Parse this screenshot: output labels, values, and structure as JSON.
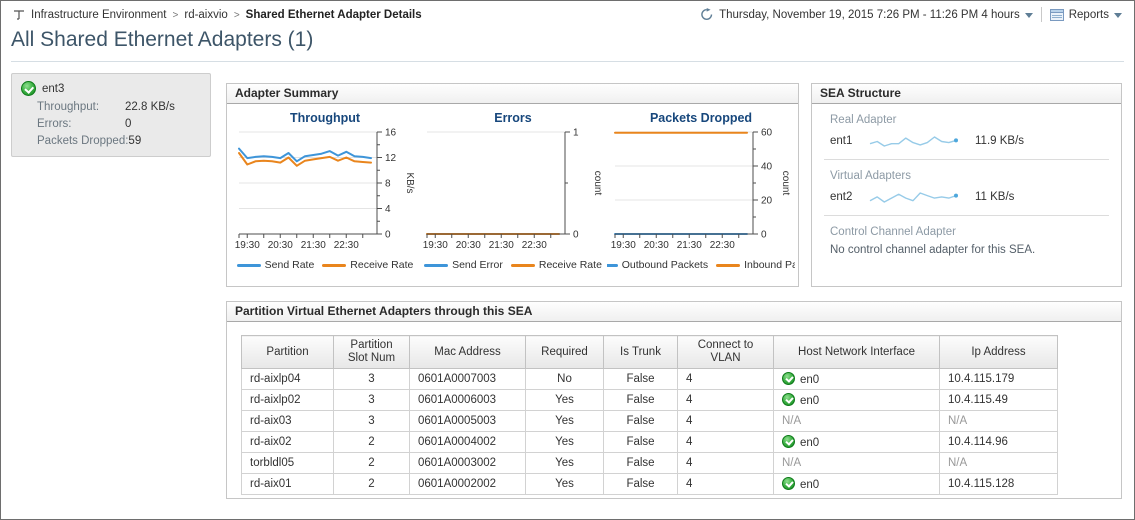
{
  "page": {
    "breadcrumb": {
      "items": [
        "Infrastructure Environment",
        "rd-aixvio",
        "Shared Ethernet Adapter Details"
      ],
      "separator": ">"
    },
    "time_range": "Thursday, November 19, 2015 7:26 PM - 11:26 PM 4 hours",
    "reports_label": "Reports",
    "title": "All Shared Ethernet Adapters (1)"
  },
  "icons": {
    "breadcrumb": "hierarchy-icon",
    "time_range": "time-range-clock-icon",
    "reports": "report-icon",
    "dropdown": "caret-down-icon",
    "status_ok": "green-check-icon"
  },
  "adapter_card": {
    "name": "ent3",
    "status": "ok",
    "rows": [
      {
        "label": "Throughput:",
        "value": "22.8 KB/s"
      },
      {
        "label": "Errors:",
        "value": "0"
      },
      {
        "label": "Packets Dropped:",
        "value": "59"
      }
    ]
  },
  "panels": {
    "adapter_summary": "Adapter Summary",
    "sea_structure": "SEA Structure",
    "partition_table": "Partition Virtual Ethernet Adapters through this SEA"
  },
  "sea_structure": {
    "sections": [
      {
        "label": "Real Adapter",
        "name": "ent1",
        "value": "11.9 KB/s",
        "sparkline": [
          4.0,
          4.2,
          3.8,
          4.0,
          4.0,
          4.5,
          4.1,
          3.9,
          4.1,
          4.6,
          4.2,
          4.1,
          4.3
        ]
      },
      {
        "label": "Virtual Adapters",
        "name": "ent2",
        "value": "11 KB/s",
        "sparkline": [
          3.8,
          4.1,
          3.7,
          4.0,
          4.3,
          4.0,
          3.8,
          4.4,
          4.2,
          4.0,
          4.1,
          4.0,
          4.2
        ]
      },
      {
        "label": "Control Channel Adapter",
        "text": "No control channel adapter for this SEA."
      }
    ]
  },
  "partition_panel": {
    "columns": [
      "Partition",
      "Partition Slot Num",
      "Mac Address",
      "Required",
      "Is Trunk",
      "Connect to VLAN",
      "Host Network Interface",
      "Ip Address"
    ],
    "rows": [
      {
        "partition": "rd-aixlp04",
        "slot": "3",
        "mac": "0601A0007003",
        "required": "No",
        "is_trunk": "False",
        "vlan": "4",
        "host_if": "en0",
        "host_if_status": "ok",
        "ip": "10.4.115.179"
      },
      {
        "partition": "rd-aixlp02",
        "slot": "3",
        "mac": "0601A0006003",
        "required": "Yes",
        "is_trunk": "False",
        "vlan": "4",
        "host_if": "en0",
        "host_if_status": "ok",
        "ip": "10.4.115.49"
      },
      {
        "partition": "rd-aix03",
        "slot": "3",
        "mac": "0601A0005003",
        "required": "Yes",
        "is_trunk": "False",
        "vlan": "4",
        "host_if": "N/A",
        "host_if_status": "none",
        "ip": "N/A"
      },
      {
        "partition": "rd-aix02",
        "slot": "2",
        "mac": "0601A0004002",
        "required": "Yes",
        "is_trunk": "False",
        "vlan": "4",
        "host_if": "en0",
        "host_if_status": "ok",
        "ip": "10.4.114.96"
      },
      {
        "partition": "torbldl05",
        "slot": "2",
        "mac": "0601A0003002",
        "required": "Yes",
        "is_trunk": "False",
        "vlan": "4",
        "host_if": "N/A",
        "host_if_status": "none",
        "ip": "N/A"
      },
      {
        "partition": "rd-aix01",
        "slot": "2",
        "mac": "0601A0002002",
        "required": "Yes",
        "is_trunk": "False",
        "vlan": "4",
        "host_if": "en0",
        "host_if_status": "ok",
        "ip": "10.4.115.128"
      }
    ]
  },
  "chart_data": [
    {
      "type": "line",
      "title": "Throughput",
      "xlabel": "",
      "ylabel": "KB/s",
      "ylim": [
        0,
        16
      ],
      "yticks": [
        0,
        4,
        8,
        12,
        16
      ],
      "x_ticklabels": [
        "19:30",
        "20:30",
        "21:30",
        "22:30"
      ],
      "x_tick_indices": [
        1,
        5,
        9,
        13
      ],
      "legend_position": "bottom",
      "grid": true,
      "series": [
        {
          "name": "Send Rate",
          "color": "#3e95d9",
          "values": [
            13.4,
            11.9,
            12.1,
            12.2,
            12.1,
            11.9,
            12.7,
            11.4,
            12.2,
            12.4,
            12.6,
            13.0,
            12.3,
            12.9,
            12.2,
            12.1,
            11.9
          ]
        },
        {
          "name": "Receive Rate",
          "color": "#e9851d",
          "values": [
            12.7,
            10.9,
            11.4,
            11.5,
            11.4,
            11.2,
            12.0,
            10.7,
            11.5,
            11.7,
            11.9,
            12.1,
            11.5,
            12.0,
            11.4,
            11.3,
            11.2
          ]
        }
      ]
    },
    {
      "type": "line",
      "title": "Errors",
      "xlabel": "",
      "ylabel": "count",
      "ylim": [
        0,
        1
      ],
      "yticks": [
        0,
        1
      ],
      "x_ticklabels": [
        "19:30",
        "20:30",
        "21:30",
        "22:30"
      ],
      "x_tick_indices": [
        1,
        5,
        9,
        13
      ],
      "legend_position": "bottom",
      "grid": true,
      "series": [
        {
          "name": "Send Error",
          "color": "#3e95d9",
          "values": [
            0,
            0,
            0,
            0,
            0,
            0,
            0,
            0,
            0,
            0,
            0,
            0,
            0,
            0,
            0,
            0,
            0
          ]
        },
        {
          "name": "Receive Rate",
          "color": "#e9851d",
          "values": [
            0,
            0,
            0,
            0,
            0,
            0,
            0,
            0,
            0,
            0,
            0,
            0,
            0,
            0,
            0,
            0,
            0
          ]
        }
      ]
    },
    {
      "type": "line",
      "title": "Packets Dropped",
      "xlabel": "",
      "ylabel": "count",
      "ylim": [
        0,
        60
      ],
      "yticks": [
        0,
        20,
        40,
        60
      ],
      "x_ticklabels": [
        "19:30",
        "20:30",
        "21:30",
        "22:30"
      ],
      "x_tick_indices": [
        1,
        5,
        9,
        13
      ],
      "legend_position": "bottom",
      "grid": true,
      "series": [
        {
          "name": "Outbound Packets",
          "color": "#3e95d9",
          "values": [
            0,
            0,
            0,
            0,
            0,
            0,
            0,
            0,
            0,
            0,
            0,
            0,
            0,
            0,
            0,
            0,
            0
          ]
        },
        {
          "name": "Inbound Pack",
          "color": "#e9851d",
          "values": [
            59.5,
            59.5,
            59.5,
            59.5,
            59.5,
            59.5,
            59.5,
            59.5,
            59.5,
            59.5,
            59.5,
            59.5,
            59.5,
            59.5,
            59.5,
            59.5,
            59.5
          ]
        }
      ]
    }
  ],
  "colors": {
    "series_blue": "#3e95d9",
    "series_orange": "#e9851d",
    "status_green": "#2fa13a",
    "spark_blue": "#97cbe8",
    "chart_title": "#17477c"
  }
}
